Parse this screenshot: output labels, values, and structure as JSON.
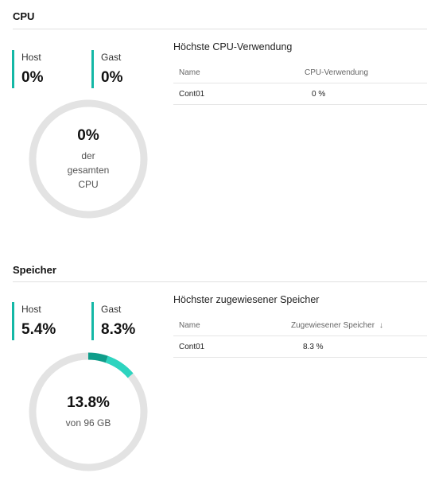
{
  "cpu": {
    "title": "CPU",
    "host": {
      "label": "Host",
      "value": "0%"
    },
    "guest": {
      "label": "Gast",
      "value": "0%"
    },
    "donut": {
      "value": "0%",
      "sub1": "der",
      "sub2": "gesamten",
      "sub3": "CPU",
      "host_fraction": 0,
      "guest_fraction": 0
    },
    "table": {
      "title": "Höchste CPU-Verwendung",
      "col_name": "Name",
      "col_value": "CPU-Verwendung",
      "rows": [
        {
          "name": "Cont01",
          "value": "0 %"
        }
      ]
    }
  },
  "memory": {
    "title": "Speicher",
    "host": {
      "label": "Host",
      "value": "5.4%"
    },
    "guest": {
      "label": "Gast",
      "value": "8.3%"
    },
    "donut": {
      "value": "13.8%",
      "sub1": "von 96 GB",
      "host_fraction": 0.054,
      "guest_fraction": 0.083
    },
    "table": {
      "title": "Höchster zugewiesener Speicher",
      "col_name": "Name",
      "col_value": "Zugewiesener Speicher",
      "sort_icon": "arrow-down-icon",
      "sort_glyph": "↓",
      "rows": [
        {
          "name": "Cont01",
          "value": "8.3 %"
        }
      ]
    }
  },
  "colors": {
    "accent": "#14b8a6",
    "host_arc": "#0f9d8a",
    "guest_arc": "#2dd4bf",
    "track": "#e3e3e3"
  }
}
